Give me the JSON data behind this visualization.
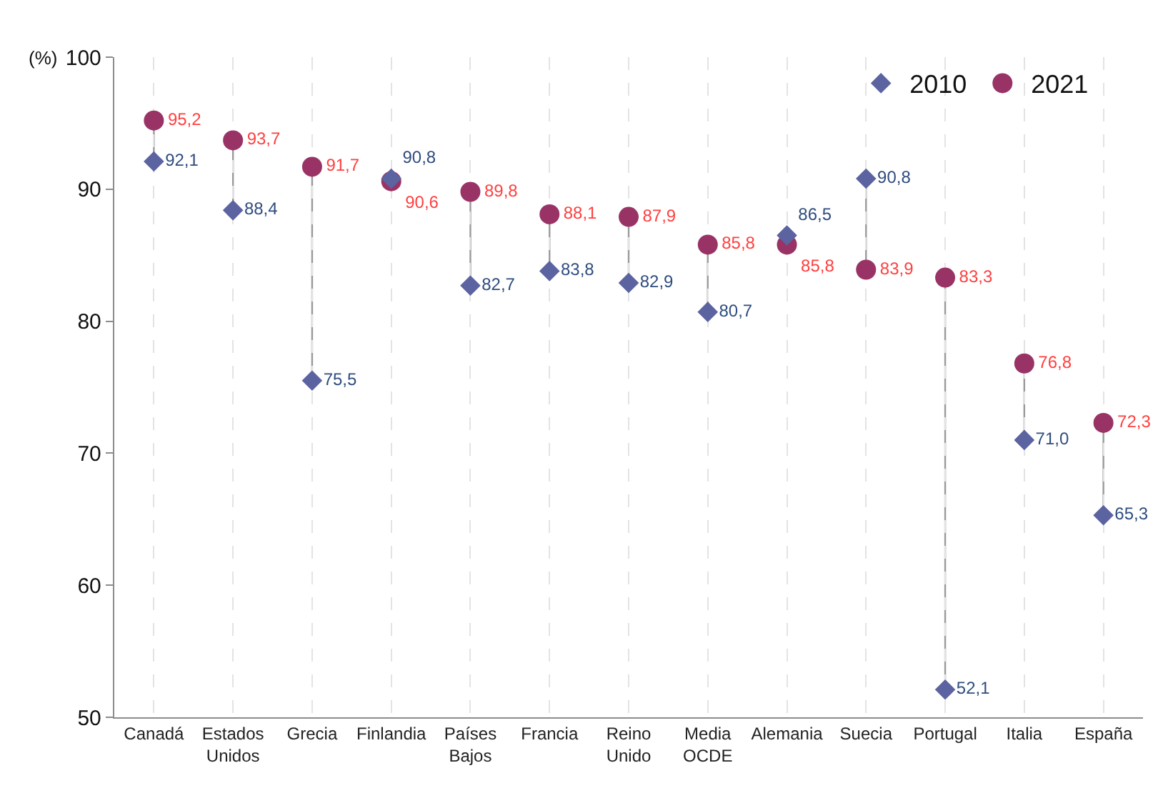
{
  "chart_data": {
    "type": "scatter",
    "ylabel": "(%)",
    "categories": [
      "Canadá",
      "Estados Unidos",
      "Grecia",
      "Finlandia",
      "Países Bajos",
      "Francia",
      "Reino Unido",
      "Media OCDE",
      "Alemania",
      "Suecia",
      "Portugal",
      "Italia",
      "España"
    ],
    "series": [
      {
        "name": "2010",
        "color": "#5b63a0",
        "marker": "diamond",
        "values": [
          92.1,
          88.4,
          75.5,
          90.8,
          82.7,
          83.8,
          82.9,
          80.7,
          86.5,
          90.8,
          52.1,
          71.0,
          65.3
        ],
        "value_labels": [
          "92,1",
          "88,4",
          "75,5",
          "90,8",
          "82,7",
          "83,8",
          "82,9",
          "80,7",
          "86,5",
          "90,8",
          "52,1",
          "71,0",
          "65,3"
        ]
      },
      {
        "name": "2021",
        "color": "#993366",
        "marker": "circle",
        "values": [
          95.2,
          93.7,
          91.7,
          90.6,
          89.8,
          88.1,
          87.9,
          85.8,
          85.8,
          83.9,
          83.3,
          76.8,
          72.3
        ],
        "value_labels": [
          "95,2",
          "93,7",
          "91,7",
          "90,6",
          "89,8",
          "88,1",
          "87,9",
          "85,8",
          "85,8",
          "83,9",
          "83,3",
          "76,8",
          "72,3"
        ]
      }
    ],
    "ylim": [
      50,
      100
    ],
    "yticks": [
      50,
      60,
      70,
      80,
      90,
      100
    ],
    "grid": "x",
    "legend": "top right"
  }
}
